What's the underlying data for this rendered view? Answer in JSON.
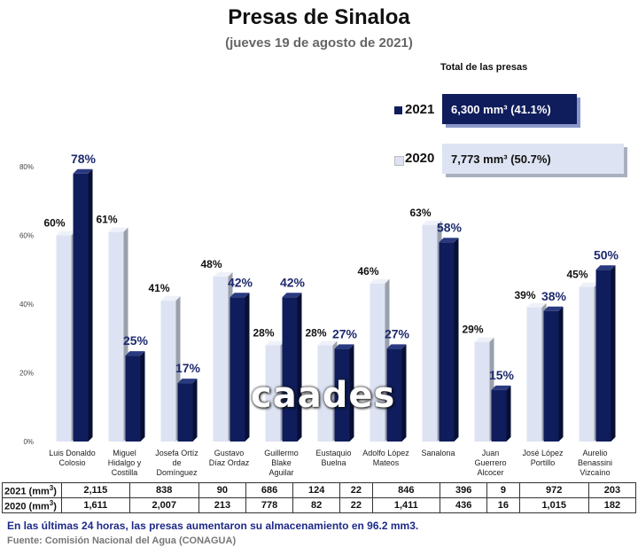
{
  "header": {
    "title": "Presas de Sinaloa",
    "subtitle": "(jueves 19 de agosto de 2021)"
  },
  "totals": {
    "heading": "Total de las presas",
    "y2021": {
      "label": "2021",
      "value": "6,300 mm³ (41.1%)"
    },
    "y2020": {
      "label": "2020",
      "value": "7,773 mm³ (50.7%)"
    }
  },
  "watermark": "caades",
  "colors": {
    "s2021": "#0f1d5c",
    "s2020": "#dde3f3",
    "label2021": "#1e2a6e"
  },
  "chart_data": {
    "type": "bar",
    "title": "Presas de Sinaloa",
    "ylim": [
      0,
      80
    ],
    "yticks": [
      "0%",
      "20%",
      "40%",
      "60%",
      "80%"
    ],
    "categories": [
      [
        "Luis Donaldo",
        "Colosio"
      ],
      [
        "Miguel",
        "Hidalgo y",
        "Costilla"
      ],
      [
        "Josefa Ortíz",
        "de",
        "Domínguez"
      ],
      [
        "Gustavo",
        "Díaz Ordaz"
      ],
      [
        "Guillermo",
        "Blake",
        "Aguilar"
      ],
      [
        "Eustaquio",
        "Buelna"
      ],
      [
        "Adolfo López",
        "Mateos"
      ],
      [
        "Sanalona"
      ],
      [
        "Juan",
        "Guerrero",
        "Alcocer"
      ],
      [
        "José López",
        "Portillo"
      ],
      [
        "Aurelio",
        "Benassini",
        "Vizcaíno"
      ]
    ],
    "series": [
      {
        "name": "2020",
        "values": [
          60,
          61,
          41,
          48,
          28,
          28,
          46,
          63,
          29,
          39,
          45
        ]
      },
      {
        "name": "2021",
        "values": [
          78,
          25,
          17,
          42,
          42,
          27,
          27,
          58,
          15,
          38,
          50
        ]
      }
    ]
  },
  "table": {
    "rows": [
      {
        "label": "2021 (mm",
        "values": [
          "2,115",
          "838",
          "90",
          "686",
          "124",
          "22",
          "846",
          "396",
          "9",
          "972",
          "203"
        ]
      },
      {
        "label": "2020 (mm",
        "values": [
          "1,611",
          "2,007",
          "213",
          "778",
          "82",
          "22",
          "1,411",
          "436",
          "16",
          "1,015",
          "182"
        ]
      }
    ],
    "unit_sup": "3",
    "close_paren": ")"
  },
  "footer": {
    "note": "En las últimas 24 horas, las presas aumentaron su almacenamiento en 96.2 mm3.",
    "source": "Fuente: Comisión Nacional del Agua (CONAGUA)"
  }
}
